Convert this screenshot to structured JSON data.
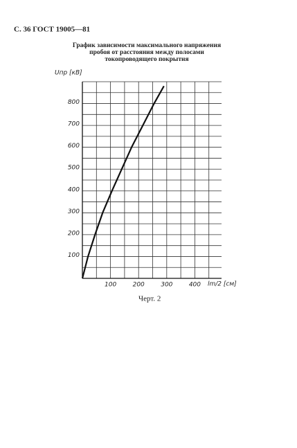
{
  "header": "С. 36 ГОСТ 19005—81",
  "caption": "Черт. 2",
  "chart_data": {
    "type": "line",
    "title": [
      "График зависимости максимального напряжения",
      "пробоя от расстояния между полосами",
      "токопроводящего покрытия"
    ],
    "y_label": "Uпр [кВ]",
    "x_label": "lm/2 [см]",
    "x": [
      0,
      20,
      45,
      72,
      105,
      140,
      175,
      215,
      255,
      290
    ],
    "series": [
      {
        "color": "#111",
        "values": [
          0,
          100,
          200,
          300,
          400,
          500,
          600,
          700,
          800,
          880
        ]
      }
    ],
    "xlim": [
      0,
      495
    ],
    "ylim": [
      0,
      900
    ],
    "xticks": [
      100,
      200,
      300,
      400
    ],
    "yticks": [
      100,
      200,
      300,
      400,
      500,
      600,
      700,
      800
    ],
    "minor_xticks": [
      0,
      50,
      150,
      250,
      350,
      450
    ],
    "minor_yticks": [
      0,
      50,
      150,
      250,
      350,
      450,
      550,
      650,
      750,
      850,
      900
    ],
    "grid": true
  }
}
